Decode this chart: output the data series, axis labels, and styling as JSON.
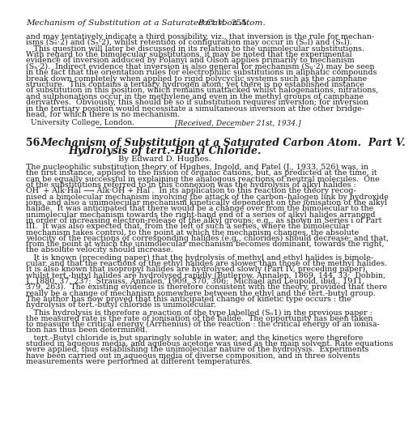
{
  "bg_color": "#ffffff",
  "text_color": "#1a1a1a",
  "header_text": "Mechanism of Substitution at a Saturated Carbon Atom.",
  "header_part": "Part V.",
  "header_page": "255",
  "top_lines": [
    "and may tentatively indicate a third possibility, viz., that inversion is the rule for mechan-",
    "isms (Sₙ·2) and (Sₙ·2), whilst retention of configuration may occur in (Sₙl) and (Sₙl).",
    " This question will later be discussed in its relation to the unimolecular substitutions.",
    "With regard to the bimolecular substitutions, it may be noted that the experimental",
    "evidence of inversion adduced by Polanyi and Olson applies primarily to mechanism",
    "(Sₙ·2).  Indirect evidence that inversion is also general for mechanism (Sₙ·2) may be seen",
    "in the fact that the orientation rules for electrophilic substitutions in aliphatic compounds",
    "break down completely when applied to rigid polycyclic systems such as the camphane",
    "structure.  This contains a tertiary hydrogen atom; yet there is no established instance",
    "of substitution in this position, which remains unattacked whilst halogenations, nitrations,",
    "and sulphonations occur in the methylene and even in the methyl groups of camphane",
    "derivatives.  Obviously, this should be so if substitution requires inversion; for inversion",
    "in the tertiary position would necessitate a simultaneous inversion at the other bridge-",
    "head, for which there is no mechanism."
  ],
  "affiliation": "University College, London.",
  "received": "[Received, December 21st, 1934.]",
  "article_num": "56.",
  "article_title1": "Mechanism of Substitution at a Saturated Carbon Atom.  Part V.",
  "article_title2": "Hydrolysis of tert.-Butyl Chloride.",
  "byline": "By Edward D. Hughes.",
  "para_lines": [
    [
      "The nucleophilic substitution theory of Hughes, Ingold, and Patel (J., 1933, 526) was, in",
      "the first instance, applied to the fission of organic cations, but, as predicted at the time, it",
      "can be equally successful in explaining the analogous reactions of neutral molecules.  One",
      "of the substitutions referred to in this connexion was the hydrolysis of alkyl halides :",
      "OH′ + Alk·Hal ⟶ Alk·OH + Hal′.  In its application to this reaction the theory recog-",
      "nised a bimolecular mechanism involving the attack of the carbon–halogen link by hydroxide",
      "ions, and also a unimolecular mechanism kinetically dependent on the ionisation of the alkyl",
      "halide.  It was anticipated that there would be a change over from the bimolecular to the",
      "unimolecular mechanism towards the right-hand end of a series of alkyl halides arranged",
      "in order of increasing electron-release of the alkyl groups; e.g., as shown in Series i of Part",
      "III.  It was also expected that, from the left of such a series, where the bimolecular",
      "mechanism takes control, to the point at which the mechanism changes, the absolute",
      "velocity of the reactions of corresponding halides (e.g., chlorides) should decrease; and that,",
      "from the point at which the unimolecular mechanism becomes dominant, towards the right,",
      "the absolute velocity should increase."
    ],
    [
      " It is known (preceding paper) that the hydrolysis of methyl and ethyl halides is bimole-",
      "cular, and that the reactions of the ethyl halides are slower than those of the methyl halides.",
      "It is also known that isopropyl halides are hydrolysed slowly (Part IV, preceding paper),",
      "whilst tert.-butyl halides are hydrolysed rapidly (Butlerow, Annalen, 1869, 144, 33;  Dobbin,",
      "J., 1880, 37, 237;  Strauss, Annalen, 1909, 370, 306;  Michael and Leupold, ibid., 1911,",
      "379, 263).  The existing evidence is therefore consistent with the theory, provided that there",
      "really be a change of mechanism somewhere between the ethyl and the tert.-butyl group.",
      "The author has now proved that this anticipated change of kinetic type occurs : the",
      "hydrolysis of tert.-butyl chloride is unimolecular."
    ],
    [
      " This hydrolysis is therefore a reaction of the type labelled (Sₙ1) in the previous paper :",
      "the measured rate is the rate of ionisation of the halide.  The opportunity has been taken",
      "to measure the critical energy (Arrhenius) of the reaction : the critical energy of an ionisa-",
      "tion has thus been determined."
    ],
    [
      " tert.-Butyl chloride is but sparingly soluble in water, and the kinetics were therefore",
      "studied in aqueous media, and aqueous acetone was used as the main solvent. Rate equations",
      "were applied, thus establishing the unimolecular nature of the hydrolysis.  Experiments",
      "have been carried out in aqueous media of diverse composition, and in three solvents",
      "measurements were performed at different temperatures."
    ]
  ]
}
